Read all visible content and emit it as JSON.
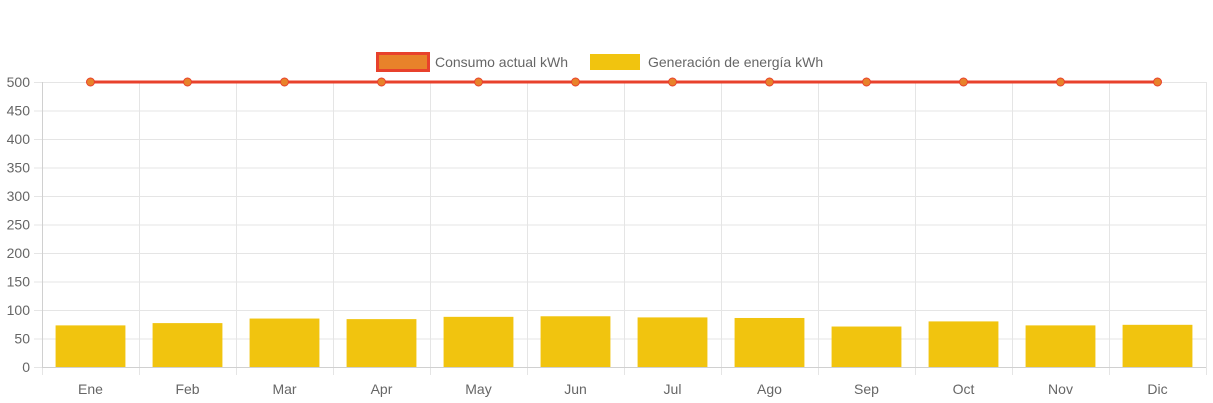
{
  "chart_data": {
    "type": "bar",
    "categories": [
      "Ene",
      "Feb",
      "Mar",
      "Apr",
      "May",
      "Jun",
      "Jul",
      "Ago",
      "Sep",
      "Oct",
      "Nov",
      "Dic"
    ],
    "series": [
      {
        "name": "Consumo actual kWh",
        "type": "line",
        "values": [
          500,
          500,
          500,
          500,
          500,
          500,
          500,
          500,
          500,
          500,
          500,
          500
        ],
        "color": "#e8412c",
        "point_color": "#e8822a"
      },
      {
        "name": "Generación de energía kWh",
        "type": "bar",
        "values": [
          73,
          77,
          85,
          84,
          88,
          89,
          87,
          86,
          71,
          80,
          73,
          74
        ],
        "color": "#f1c40f"
      }
    ],
    "y_ticks": [
      "0",
      "50",
      "100",
      "150",
      "200",
      "250",
      "300",
      "350",
      "400",
      "450",
      "500"
    ],
    "ylim": [
      0,
      500
    ],
    "grid": true,
    "legend_position": "top"
  }
}
